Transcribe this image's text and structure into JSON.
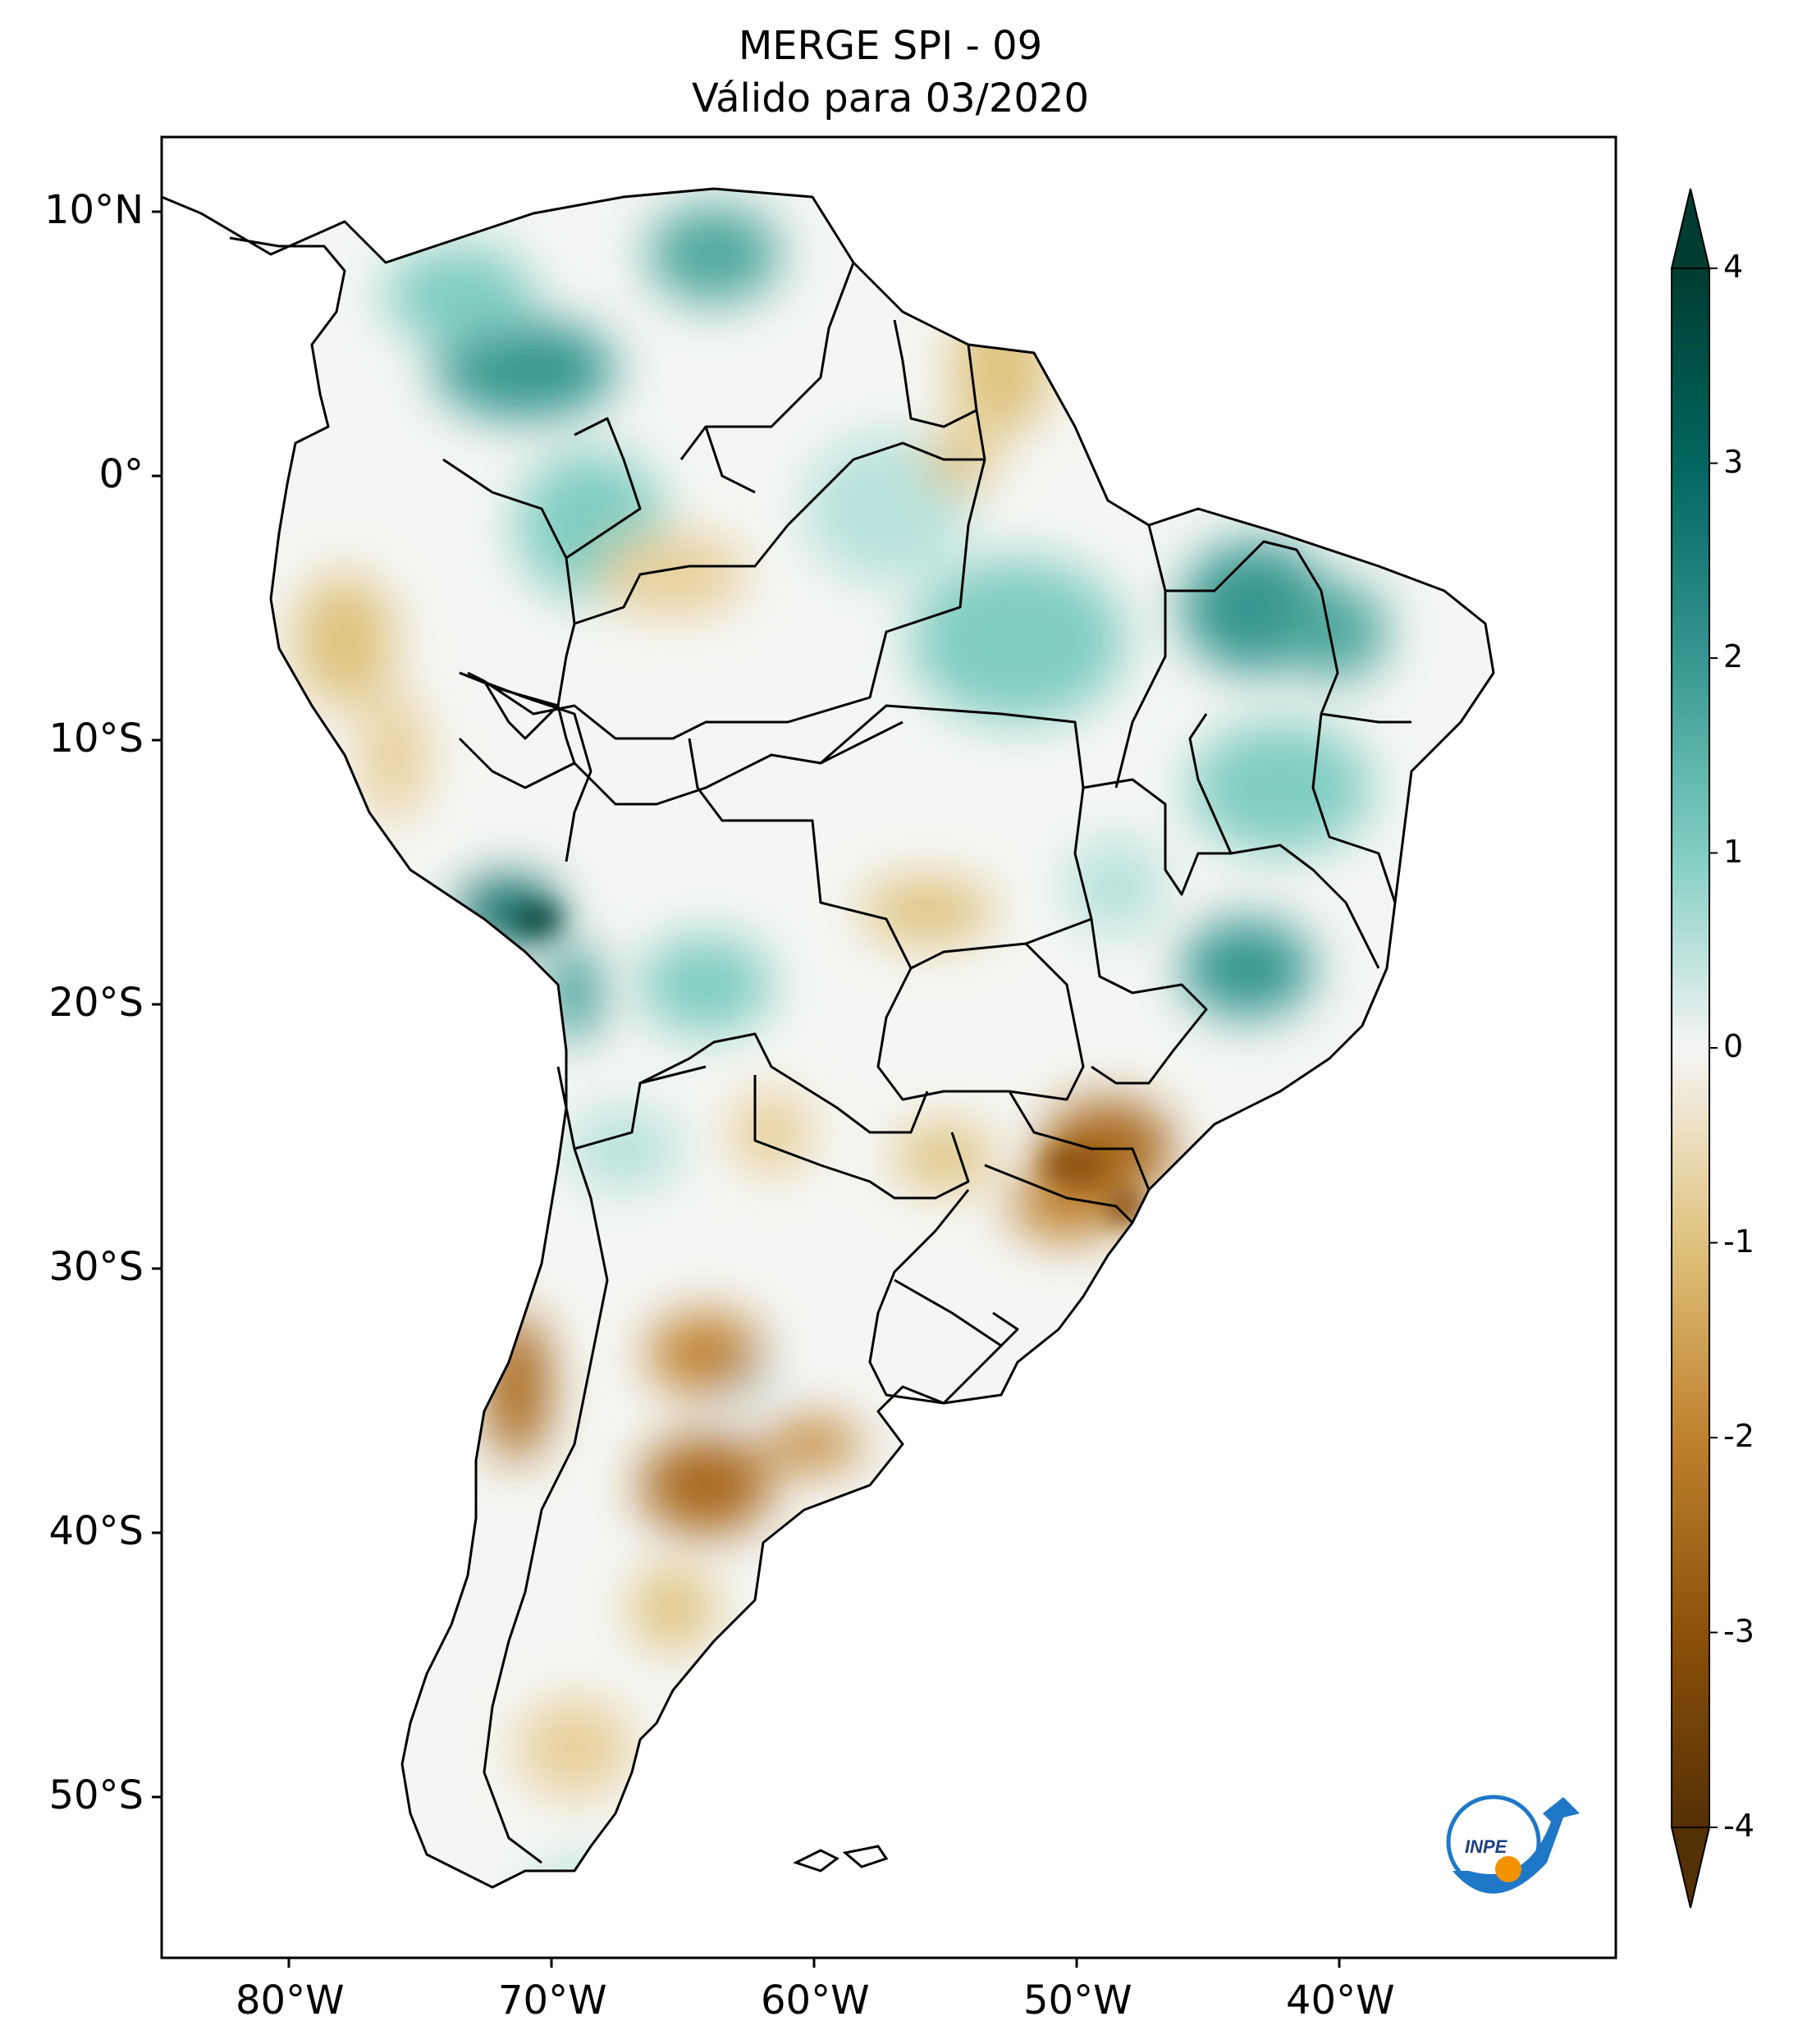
{
  "title": {
    "line1": "MERGE   SPI - 09",
    "line2": "Válido para 03/2020"
  },
  "axes": {
    "lon_ticks": [
      "80°W",
      "70°W",
      "60°W",
      "50°W",
      "40°W"
    ],
    "lat_ticks": [
      "10°N",
      "0°",
      "10°S",
      "20°S",
      "30°S",
      "40°S",
      "50°S"
    ],
    "lon_range": [
      -85,
      -30
    ],
    "lat_range": [
      -56,
      13
    ]
  },
  "colorbar": {
    "ticks": [
      "4",
      "3",
      "2",
      "1",
      "0",
      "-1",
      "-2",
      "-3",
      "-4"
    ],
    "range": [
      -4,
      4
    ],
    "colormap": "BrBG",
    "extend": "both"
  },
  "logo": {
    "text": "INPE"
  },
  "colors": {
    "dry_strong": "#5a3408",
    "dry_moderate": "#b9802f",
    "dry_light": "#e8cf9a",
    "neutral": "#f5f5f5",
    "wet_light": "#b8e2dc",
    "wet_moderate": "#4fa89c",
    "wet_strong": "#0b4a40",
    "logo_blue": "#1f77c8",
    "logo_orange": "#f39200"
  }
}
